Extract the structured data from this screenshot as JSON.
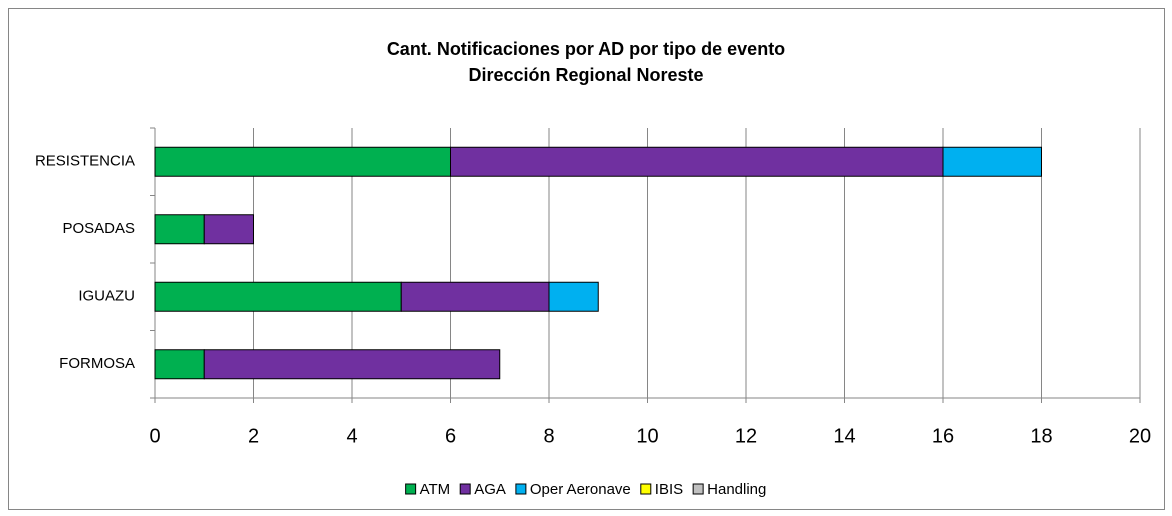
{
  "chart_data": {
    "type": "stacked_barh",
    "title": "Cant. Notificaciones por AD por tipo de evento",
    "subtitle": "Dirección Regional Noreste",
    "categories": [
      "RESISTENCIA",
      "POSADAS",
      "IGUAZU",
      "FORMOSA"
    ],
    "series": [
      {
        "name": "ATM",
        "color": "#00b050",
        "values": [
          6,
          1,
          5,
          1
        ]
      },
      {
        "name": "AGA",
        "color": "#7030a0",
        "values": [
          10,
          1,
          3,
          6
        ]
      },
      {
        "name": "Oper Aeronave",
        "color": "#00b0f0",
        "values": [
          2,
          0,
          1,
          0
        ]
      },
      {
        "name": "IBIS",
        "color": "#ffff00",
        "values": [
          0,
          0,
          0,
          0
        ]
      },
      {
        "name": "Handling",
        "color": "#c0c0c0",
        "values": [
          0,
          0,
          0,
          0
        ]
      }
    ],
    "xlim": [
      0,
      20
    ],
    "xticks": [
      0,
      2,
      4,
      6,
      8,
      10,
      12,
      14,
      16,
      18,
      20
    ],
    "grid": true,
    "legend": "bottom"
  }
}
